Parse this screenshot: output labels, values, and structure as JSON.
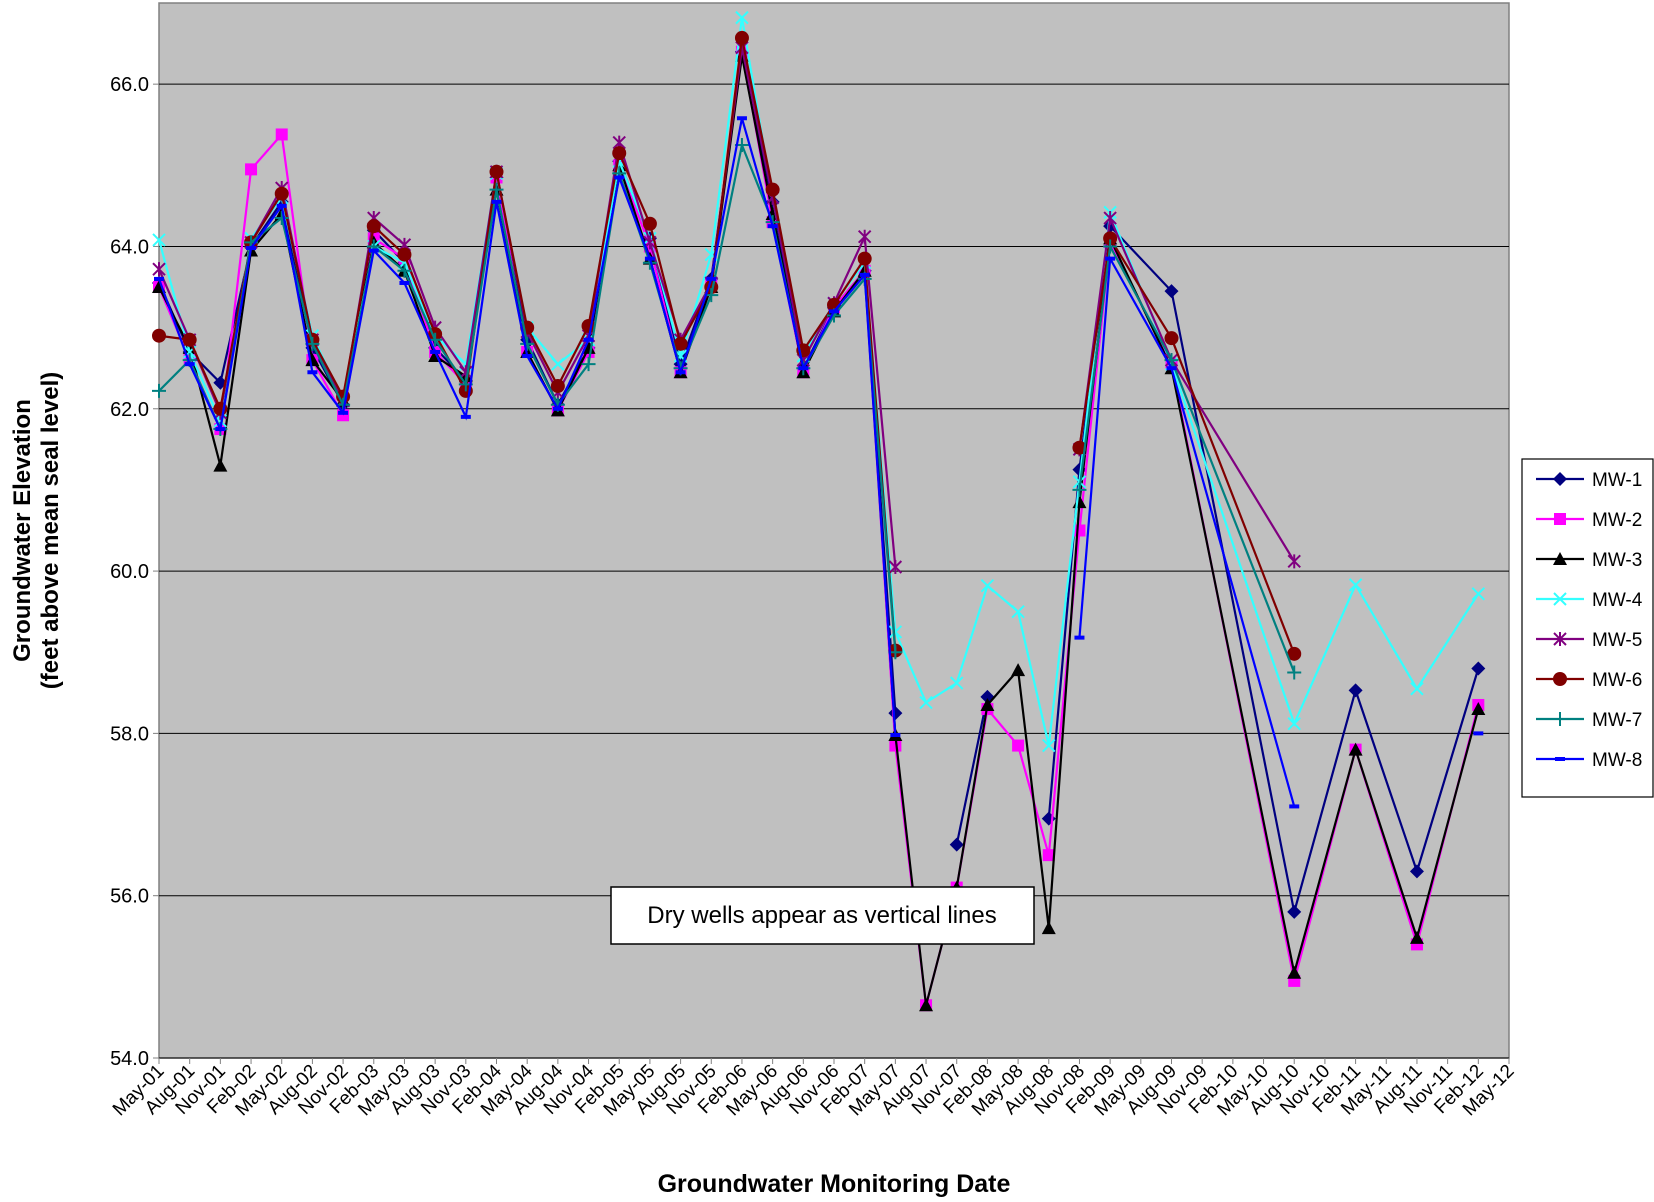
{
  "chart_data": {
    "type": "line",
    "xlabel": "Groundwater Monitoring Date",
    "ylabel": [
      "Groundwater Elevation",
      "(feet above mean seal level)"
    ],
    "annotation": "Dry wells appear as vertical lines",
    "xticks": [
      "May-01",
      "Aug-01",
      "Nov-01",
      "Feb-02",
      "May-02",
      "Aug-02",
      "Nov-02",
      "Feb-03",
      "May-03",
      "Aug-03",
      "Nov-03",
      "Feb-04",
      "May-04",
      "Aug-04",
      "Nov-04",
      "Feb-05",
      "May-05",
      "Aug-05",
      "Nov-05",
      "Feb-06",
      "May-06",
      "Aug-06",
      "Nov-06",
      "Feb-07",
      "May-07",
      "Aug-07",
      "Nov-07",
      "Feb-08",
      "May-08",
      "Aug-08",
      "Nov-08",
      "Feb-09",
      "May-09",
      "Aug-09",
      "Nov-09",
      "Feb-10",
      "May-10",
      "Aug-10",
      "Nov-10",
      "Feb-11",
      "May-11",
      "Aug-11",
      "Nov-11",
      "Feb-12",
      "May-12"
    ],
    "x": [
      "May-01",
      "Aug-01",
      "Nov-01",
      "Feb-02",
      "May-02",
      "Aug-02",
      "Nov-02",
      "Feb-03",
      "May-03",
      "Aug-03",
      "Nov-03",
      "Feb-04",
      "May-04",
      "Aug-04",
      "Nov-04",
      "Feb-05",
      "May-05",
      "Aug-05",
      "Nov-05",
      "Feb-06",
      "May-06",
      "Aug-06",
      "Nov-06",
      "Feb-07",
      "May-07",
      "Aug-07",
      "Nov-07",
      "Feb-08",
      "May-08",
      "Aug-08",
      "Nov-08",
      "Feb-09",
      "Aug-09",
      "Aug-10",
      "Feb-11",
      "Aug-11",
      "Feb-12"
    ],
    "ylim": [
      54,
      67
    ],
    "yticks": [
      {
        "value": 54,
        "label": "54.0"
      },
      {
        "value": 56,
        "label": "56.0"
      },
      {
        "value": 58,
        "label": "58.0"
      },
      {
        "value": 60,
        "label": "60.0"
      },
      {
        "value": 62,
        "label": "62.0"
      },
      {
        "value": 64,
        "label": "64.0"
      },
      {
        "value": 66,
        "label": "66.0"
      }
    ],
    "grid": true,
    "legend": "right",
    "series": [
      {
        "name": "MW-1",
        "color": "#000080",
        "marker": "diamond",
        "values": [
          63.55,
          62.7,
          62.32,
          64.0,
          64.55,
          62.75,
          62.05,
          64.2,
          63.8,
          62.75,
          62.35,
          64.85,
          62.85,
          62.05,
          62.75,
          65.05,
          64.1,
          62.55,
          63.6,
          66.4,
          64.55,
          62.5,
          63.25,
          63.7,
          58.25,
          null,
          56.63,
          58.45,
          null,
          56.95,
          61.25,
          64.25,
          63.45,
          55.8,
          58.53,
          56.3,
          58.8
        ]
      },
      {
        "name": "MW-2",
        "color": "#ff00ff",
        "marker": "square",
        "values": [
          63.5,
          62.6,
          61.75,
          64.95,
          65.38,
          62.6,
          61.92,
          64.1,
          63.85,
          62.7,
          62.3,
          64.85,
          62.7,
          61.98,
          62.7,
          65.0,
          64.0,
          62.45,
          63.55,
          66.4,
          64.3,
          62.45,
          63.25,
          63.7,
          57.85,
          54.65,
          56.1,
          58.3,
          57.85,
          56.5,
          60.5,
          64.05,
          62.55,
          54.95,
          57.8,
          55.4,
          58.35
        ]
      },
      {
        "name": "MW-3",
        "color": "#000000",
        "marker": "triangle",
        "values": [
          63.5,
          62.75,
          61.3,
          63.95,
          64.4,
          62.6,
          62.1,
          64.05,
          63.7,
          62.65,
          62.4,
          64.7,
          62.7,
          61.98,
          62.75,
          65.0,
          63.85,
          62.45,
          63.5,
          66.35,
          64.4,
          62.45,
          63.2,
          63.7,
          57.98,
          54.65,
          56.1,
          58.35,
          58.78,
          55.6,
          60.85,
          64.1,
          62.5,
          55.05,
          57.8,
          55.48,
          58.3
        ]
      },
      {
        "name": "MW-4",
        "color": "#33ffff",
        "marker": "x",
        "values": [
          64.08,
          62.7,
          61.85,
          64.1,
          64.6,
          62.9,
          62.1,
          64.0,
          63.8,
          62.9,
          62.55,
          64.9,
          63.0,
          62.55,
          62.85,
          65.05,
          64.1,
          62.65,
          63.9,
          66.82,
          64.6,
          62.65,
          63.3,
          63.8,
          59.25,
          58.38,
          58.62,
          59.82,
          59.5,
          57.85,
          61.1,
          64.42,
          62.55,
          58.12,
          59.83,
          58.55,
          59.72
        ]
      },
      {
        "name": "MW-5",
        "color": "#800080",
        "marker": "star",
        "values": [
          63.72,
          62.85,
          61.95,
          64.05,
          64.72,
          62.85,
          62.1,
          64.35,
          64.02,
          63.0,
          62.45,
          64.92,
          62.95,
          62.2,
          62.9,
          65.28,
          64.05,
          62.85,
          63.55,
          66.45,
          64.6,
          62.6,
          63.3,
          64.12,
          60.05,
          null,
          null,
          null,
          null,
          null,
          61.5,
          64.35,
          62.6,
          60.12,
          null,
          null,
          null
        ]
      },
      {
        "name": "MW-6",
        "color": "#800000",
        "marker": "circle",
        "values": [
          62.9,
          62.85,
          62.0,
          64.05,
          64.65,
          62.85,
          62.15,
          64.25,
          63.9,
          62.92,
          62.22,
          64.92,
          63.0,
          62.28,
          63.02,
          65.15,
          64.28,
          62.8,
          63.5,
          66.57,
          64.7,
          62.72,
          63.28,
          63.85,
          59.02,
          null,
          null,
          null,
          null,
          null,
          61.52,
          64.1,
          62.87,
          58.98,
          null,
          null,
          null
        ]
      },
      {
        "name": "MW-7",
        "color": "#008080",
        "marker": "plus",
        "values": [
          62.22,
          62.6,
          61.75,
          64.05,
          64.35,
          62.8,
          62.05,
          64.0,
          63.7,
          62.85,
          62.3,
          64.7,
          62.8,
          62.05,
          62.55,
          64.9,
          63.8,
          62.5,
          63.4,
          65.25,
          64.3,
          62.5,
          63.15,
          63.6,
          59.0,
          null,
          null,
          null,
          null,
          null,
          61.0,
          64.0,
          62.6,
          58.75,
          null,
          null,
          null
        ]
      },
      {
        "name": "MW-8",
        "color": "#0000ff",
        "marker": "dash",
        "values": [
          63.6,
          62.55,
          61.75,
          63.98,
          64.5,
          62.45,
          61.95,
          63.95,
          63.55,
          62.7,
          61.9,
          64.55,
          62.65,
          62.0,
          62.85,
          64.85,
          63.85,
          62.45,
          63.6,
          65.58,
          64.25,
          62.5,
          63.2,
          63.65,
          57.98,
          null,
          null,
          null,
          null,
          null,
          59.18,
          63.85,
          62.5,
          57.1,
          null,
          null,
          58.0
        ]
      }
    ]
  }
}
